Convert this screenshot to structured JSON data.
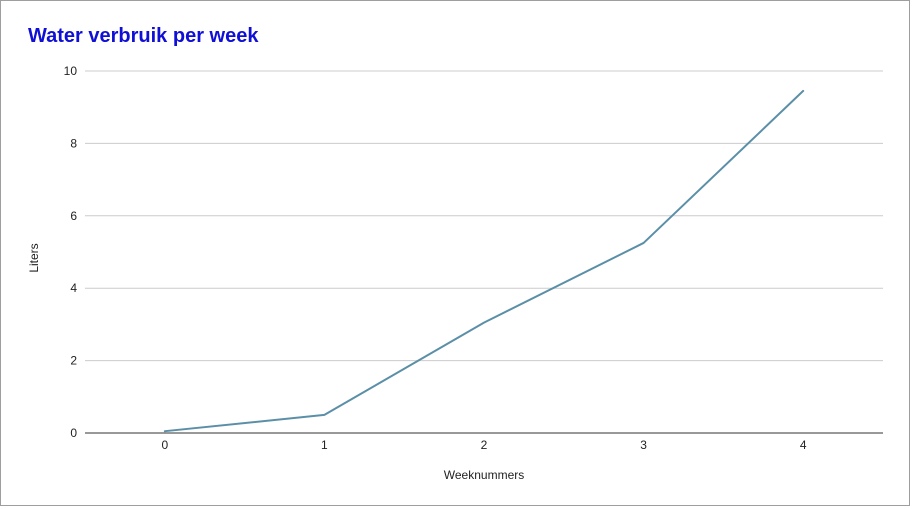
{
  "chart_data": {
    "type": "line",
    "title": "Water verbruik per week",
    "xlabel": "Weeknummers",
    "ylabel": "Liters",
    "x": [
      0,
      1,
      2,
      3,
      4
    ],
    "xlim": [
      -0.5,
      4.5
    ],
    "ylim": [
      0,
      10
    ],
    "yticks": [
      0,
      2,
      4,
      6,
      8,
      10
    ],
    "xticks": [
      0,
      1,
      2,
      3,
      4
    ],
    "grid": true,
    "series": [
      {
        "values": [
          0.05,
          0.5,
          3.05,
          5.25,
          9.45
        ],
        "color": "#5b8fa8"
      }
    ],
    "colors": {
      "title": "#0f0fd6",
      "gridline": "#cccccc",
      "axis": "#333333"
    }
  }
}
